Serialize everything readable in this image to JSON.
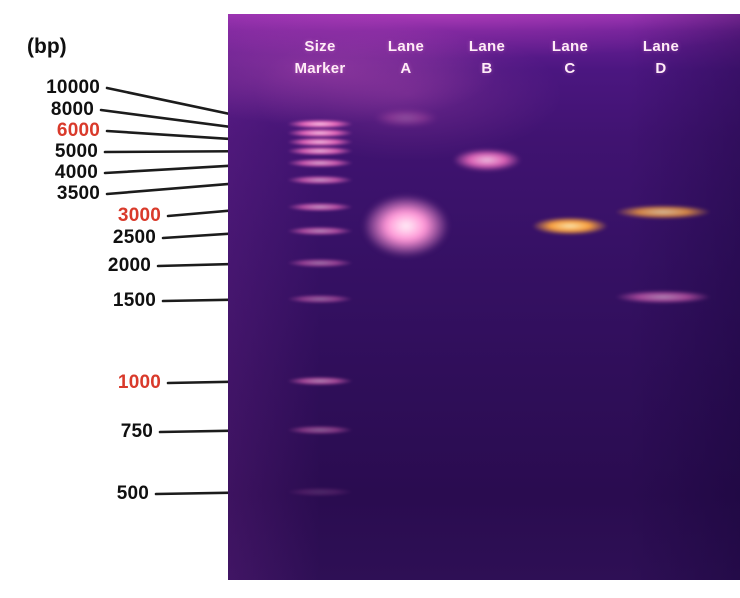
{
  "units_label": "(bp)",
  "marker_labels": [
    {
      "text": "10000",
      "highlight": false
    },
    {
      "text": "8000",
      "highlight": false
    },
    {
      "text": "6000",
      "highlight": true
    },
    {
      "text": "5000",
      "highlight": false
    },
    {
      "text": "4000",
      "highlight": false
    },
    {
      "text": "3500",
      "highlight": false
    },
    {
      "text": "3000",
      "highlight": true
    },
    {
      "text": "2500",
      "highlight": false
    },
    {
      "text": "2000",
      "highlight": false
    },
    {
      "text": "1500",
      "highlight": false
    },
    {
      "text": "1000",
      "highlight": true
    },
    {
      "text": "750",
      "highlight": false
    },
    {
      "text": "500",
      "highlight": false
    }
  ],
  "column_headers": [
    {
      "line1": "Size",
      "line2": "Marker"
    },
    {
      "line1": "Lane",
      "line2": "A"
    },
    {
      "line1": "Lane",
      "line2": "B"
    },
    {
      "line1": "Lane",
      "line2": "C"
    },
    {
      "line1": "Lane",
      "line2": "D"
    }
  ],
  "colors": {
    "label": "#101010",
    "highlight_label": "#d93a2b",
    "header_text": "#ffecf7",
    "gel_background": "#3a1168",
    "band_core_pink": "#ffd6ee",
    "band_mid_pink": "#ee6cbe",
    "band_core_bright": "#fff3fa",
    "band_bright_mid": "#ff96d6",
    "band_core_orange": "#ffeab0",
    "band_mid_orange": "#ffa53e"
  }
}
